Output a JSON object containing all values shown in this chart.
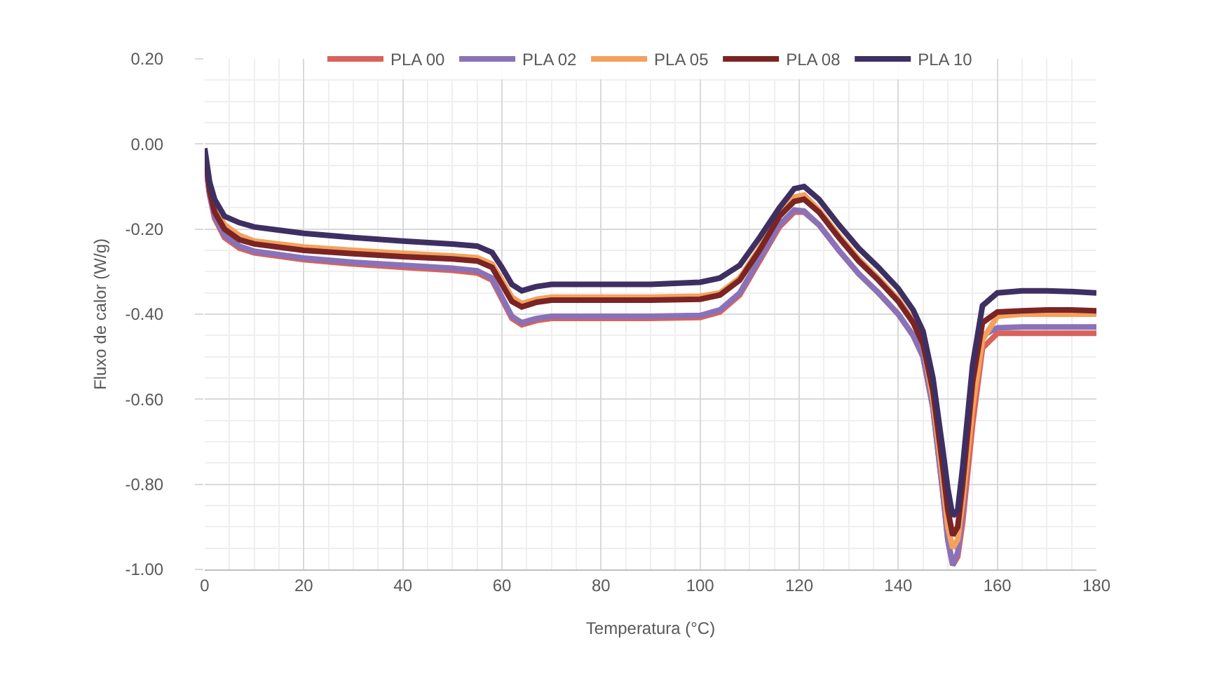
{
  "chart_data": {
    "type": "line",
    "xlabel": "Temperatura (°C)",
    "ylabel": "Fluxo de calor (W/g)",
    "x": [
      0,
      1,
      2,
      4,
      7,
      10,
      20,
      30,
      40,
      50,
      55,
      58,
      60,
      62,
      64,
      67,
      70,
      80,
      90,
      100,
      104,
      108,
      112,
      116,
      119,
      121,
      124,
      128,
      132,
      136,
      140,
      143,
      145,
      147,
      149,
      150,
      151,
      152,
      153,
      155,
      157,
      160,
      165,
      170,
      175,
      180
    ],
    "series": [
      {
        "name": "PLA 00",
        "color": "#d9625a",
        "values": [
          -0.03,
          -0.12,
          -0.175,
          -0.22,
          -0.245,
          -0.256,
          -0.272,
          -0.282,
          -0.29,
          -0.297,
          -0.303,
          -0.32,
          -0.365,
          -0.41,
          -0.425,
          -0.415,
          -0.41,
          -0.41,
          -0.41,
          -0.408,
          -0.395,
          -0.355,
          -0.275,
          -0.195,
          -0.16,
          -0.16,
          -0.19,
          -0.25,
          -0.305,
          -0.35,
          -0.4,
          -0.45,
          -0.5,
          -0.62,
          -0.82,
          -0.93,
          -0.99,
          -0.97,
          -0.89,
          -0.66,
          -0.48,
          -0.445,
          -0.445,
          -0.445,
          -0.445,
          -0.445
        ]
      },
      {
        "name": "PLA 02",
        "color": "#8a72b8",
        "values": [
          -0.03,
          -0.12,
          -0.17,
          -0.215,
          -0.24,
          -0.252,
          -0.268,
          -0.278,
          -0.285,
          -0.292,
          -0.298,
          -0.315,
          -0.36,
          -0.405,
          -0.42,
          -0.41,
          -0.405,
          -0.405,
          -0.405,
          -0.403,
          -0.39,
          -0.35,
          -0.27,
          -0.19,
          -0.155,
          -0.158,
          -0.19,
          -0.25,
          -0.305,
          -0.35,
          -0.4,
          -0.45,
          -0.5,
          -0.62,
          -0.82,
          -0.93,
          -0.99,
          -0.96,
          -0.86,
          -0.6,
          -0.45,
          -0.432,
          -0.43,
          -0.43,
          -0.43,
          -0.43
        ]
      },
      {
        "name": "PLA 05",
        "color": "#f4a15d",
        "values": [
          null,
          -0.1,
          -0.15,
          -0.19,
          -0.215,
          -0.228,
          -0.242,
          -0.25,
          -0.257,
          -0.263,
          -0.267,
          -0.282,
          -0.32,
          -0.36,
          -0.375,
          -0.365,
          -0.36,
          -0.36,
          -0.36,
          -0.358,
          -0.35,
          -0.315,
          -0.245,
          -0.165,
          -0.125,
          -0.12,
          -0.155,
          -0.215,
          -0.27,
          -0.315,
          -0.365,
          -0.415,
          -0.47,
          -0.6,
          -0.79,
          -0.9,
          -0.95,
          -0.93,
          -0.84,
          -0.62,
          -0.46,
          -0.405,
          -0.4,
          -0.4,
          -0.4,
          -0.4
        ]
      },
      {
        "name": "PLA 08",
        "color": "#7b2424",
        "values": [
          -0.02,
          -0.11,
          -0.16,
          -0.2,
          -0.225,
          -0.235,
          -0.25,
          -0.258,
          -0.265,
          -0.27,
          -0.275,
          -0.29,
          -0.33,
          -0.37,
          -0.383,
          -0.372,
          -0.367,
          -0.367,
          -0.367,
          -0.365,
          -0.355,
          -0.32,
          -0.25,
          -0.17,
          -0.135,
          -0.13,
          -0.16,
          -0.22,
          -0.275,
          -0.32,
          -0.37,
          -0.42,
          -0.47,
          -0.58,
          -0.76,
          -0.86,
          -0.92,
          -0.9,
          -0.8,
          -0.56,
          -0.42,
          -0.395,
          -0.392,
          -0.39,
          -0.39,
          -0.392
        ]
      },
      {
        "name": "PLA 10",
        "color": "#3e2f63",
        "values": [
          -0.01,
          -0.09,
          -0.13,
          -0.17,
          -0.185,
          -0.195,
          -0.21,
          -0.22,
          -0.228,
          -0.235,
          -0.24,
          -0.255,
          -0.29,
          -0.33,
          -0.345,
          -0.335,
          -0.33,
          -0.33,
          -0.33,
          -0.325,
          -0.315,
          -0.285,
          -0.22,
          -0.15,
          -0.105,
          -0.1,
          -0.13,
          -0.19,
          -0.245,
          -0.29,
          -0.34,
          -0.39,
          -0.44,
          -0.55,
          -0.72,
          -0.81,
          -0.875,
          -0.86,
          -0.76,
          -0.52,
          -0.38,
          -0.35,
          -0.345,
          -0.345,
          -0.347,
          -0.35
        ]
      }
    ],
    "xlim": [
      0,
      180
    ],
    "xticks": [
      0,
      20,
      40,
      60,
      80,
      100,
      120,
      140,
      160,
      180
    ],
    "ylim": [
      -1,
      0.2
    ],
    "yticks": [
      {
        "value": -1,
        "label": "-1.00"
      },
      {
        "value": -0.8,
        "label": "-0.80"
      },
      {
        "value": -0.6,
        "label": "-0.60"
      },
      {
        "value": -0.4,
        "label": "-0.40"
      },
      {
        "value": -0.2,
        "label": "-0.20"
      },
      {
        "value": 0,
        "label": "0.00"
      },
      {
        "value": 0.2,
        "label": "0.20"
      }
    ],
    "grid": true,
    "legend": "top",
    "marker": "none",
    "line_style": "solid"
  }
}
